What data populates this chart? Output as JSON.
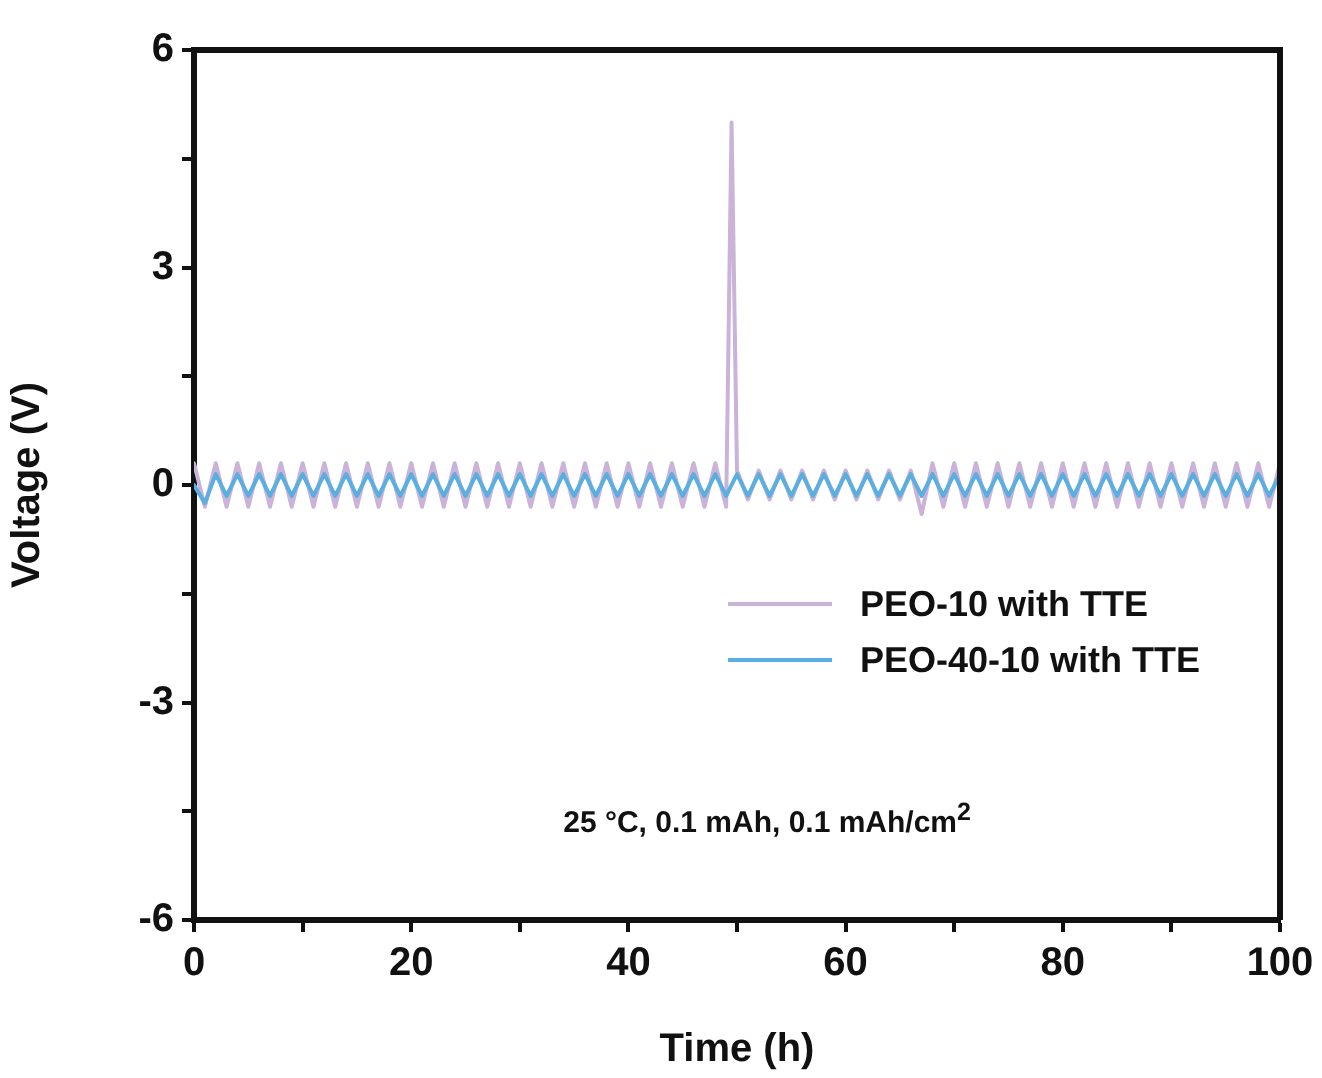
{
  "chart_data": {
    "type": "line",
    "xlabel": "Time (h)",
    "ylabel": "Voltage (V)",
    "xlim": [
      0,
      100
    ],
    "xticks": [
      0,
      {
        "value": 10,
        "label": null
      },
      20,
      {
        "value": 30,
        "label": null
      },
      40,
      {
        "value": 50,
        "label": null
      },
      60,
      {
        "value": 70,
        "label": null
      },
      80,
      {
        "value": 90,
        "label": null
      },
      100
    ],
    "ylim": [
      -6,
      6
    ],
    "yticks": [
      -6,
      {
        "value": -4.5,
        "label": null
      },
      -3,
      {
        "value": -1.5,
        "label": null
      },
      0,
      {
        "value": 1.5,
        "label": null
      },
      3,
      {
        "value": 4.5,
        "label": null
      },
      6
    ],
    "grid": false,
    "legend": "right",
    "marker": "none",
    "line_style": "solid",
    "annotations": [
      "25 °C, 0.1 mAh, 0.1 mAh/cm$^{2}$"
    ],
    "series": [
      {
        "name": "PEO-10 with TTE",
        "color": "#c9b3d9",
        "x": [
          0,
          1,
          2,
          3,
          4,
          5,
          6,
          7,
          8,
          9,
          10,
          11,
          12,
          13,
          14,
          15,
          16,
          17,
          18,
          19,
          20,
          21,
          22,
          23,
          24,
          25,
          26,
          27,
          28,
          29,
          30,
          31,
          32,
          33,
          34,
          35,
          36,
          37,
          38,
          39,
          40,
          41,
          42,
          43,
          44,
          45,
          46,
          47,
          48,
          49,
          49.5,
          50,
          51,
          52,
          53,
          54,
          55,
          56,
          57,
          58,
          59,
          60,
          61,
          62,
          63,
          64,
          65,
          66,
          67,
          68,
          69,
          70,
          71,
          72,
          73,
          74,
          75,
          76,
          77,
          78,
          79,
          80,
          81,
          82,
          83,
          84,
          85,
          86,
          87,
          88,
          89,
          90,
          91,
          92,
          93,
          94,
          95,
          96,
          97,
          98,
          99,
          100
        ],
        "values": [
          0.3,
          -0.3,
          0.3,
          -0.3,
          0.3,
          -0.3,
          0.3,
          -0.3,
          0.3,
          -0.3,
          0.3,
          -0.3,
          0.3,
          -0.3,
          0.3,
          -0.3,
          0.3,
          -0.3,
          0.3,
          -0.3,
          0.3,
          -0.3,
          0.3,
          -0.3,
          0.3,
          -0.3,
          0.3,
          -0.3,
          0.3,
          -0.3,
          0.3,
          -0.3,
          0.3,
          -0.3,
          0.3,
          -0.3,
          0.3,
          -0.3,
          0.3,
          -0.3,
          0.3,
          -0.3,
          0.3,
          -0.3,
          0.3,
          -0.3,
          0.3,
          -0.3,
          0.3,
          -0.3,
          5,
          0.2,
          -0.2,
          0.2,
          -0.2,
          0.2,
          -0.2,
          0.2,
          -0.2,
          0.2,
          -0.2,
          0.2,
          -0.2,
          0.2,
          -0.2,
          0.2,
          -0.2,
          0.2,
          -0.4,
          0.3,
          -0.3,
          0.3,
          -0.3,
          0.3,
          -0.3,
          0.3,
          -0.3,
          0.3,
          -0.3,
          0.3,
          -0.3,
          0.3,
          -0.3,
          0.3,
          -0.3,
          0.3,
          -0.3,
          0.3,
          -0.3,
          0.3,
          -0.3,
          0.3,
          -0.3,
          0.3,
          -0.3,
          0.3,
          -0.3,
          0.3,
          -0.3,
          0.3,
          -0.3,
          0.3
        ]
      },
      {
        "name": "PEO-40-10 with TTE",
        "color": "#5aaee0",
        "x": [
          0,
          1,
          2,
          3,
          4,
          5,
          6,
          7,
          8,
          9,
          10,
          11,
          12,
          13,
          14,
          15,
          16,
          17,
          18,
          19,
          20,
          21,
          22,
          23,
          24,
          25,
          26,
          27,
          28,
          29,
          30,
          31,
          32,
          33,
          34,
          35,
          36,
          37,
          38,
          39,
          40,
          41,
          42,
          43,
          44,
          45,
          46,
          47,
          48,
          49,
          50,
          51,
          52,
          53,
          54,
          55,
          56,
          57,
          58,
          59,
          60,
          61,
          62,
          63,
          64,
          65,
          66,
          67,
          68,
          69,
          70,
          71,
          72,
          73,
          74,
          75,
          76,
          77,
          78,
          79,
          80,
          81,
          82,
          83,
          84,
          85,
          86,
          87,
          88,
          89,
          90,
          91,
          92,
          93,
          94,
          95,
          96,
          97,
          98,
          99,
          100
        ],
        "values": [
          0,
          -0.25,
          0.15,
          -0.15,
          0.15,
          -0.15,
          0.15,
          -0.15,
          0.15,
          -0.15,
          0.15,
          -0.15,
          0.15,
          -0.15,
          0.15,
          -0.15,
          0.15,
          -0.15,
          0.15,
          -0.15,
          0.15,
          -0.15,
          0.15,
          -0.15,
          0.15,
          -0.15,
          0.15,
          -0.15,
          0.15,
          -0.15,
          0.15,
          -0.15,
          0.15,
          -0.15,
          0.15,
          -0.15,
          0.15,
          -0.15,
          0.15,
          -0.15,
          0.15,
          -0.15,
          0.15,
          -0.15,
          0.15,
          -0.15,
          0.15,
          -0.15,
          0.15,
          -0.15,
          0.15,
          -0.15,
          0.15,
          -0.15,
          0.15,
          -0.15,
          0.15,
          -0.15,
          0.15,
          -0.15,
          0.15,
          -0.15,
          0.15,
          -0.15,
          0.15,
          -0.15,
          0.15,
          -0.15,
          0.15,
          -0.15,
          0.15,
          -0.15,
          0.15,
          -0.15,
          0.15,
          -0.15,
          0.15,
          -0.15,
          0.15,
          -0.15,
          0.15,
          -0.15,
          0.15,
          -0.15,
          0.15,
          -0.15,
          0.15,
          -0.15,
          0.15,
          -0.15,
          0.15,
          -0.15,
          0.15,
          -0.15,
          0.15,
          -0.15,
          0.15,
          -0.15,
          0.15,
          -0.15,
          0.15
        ]
      }
    ]
  }
}
